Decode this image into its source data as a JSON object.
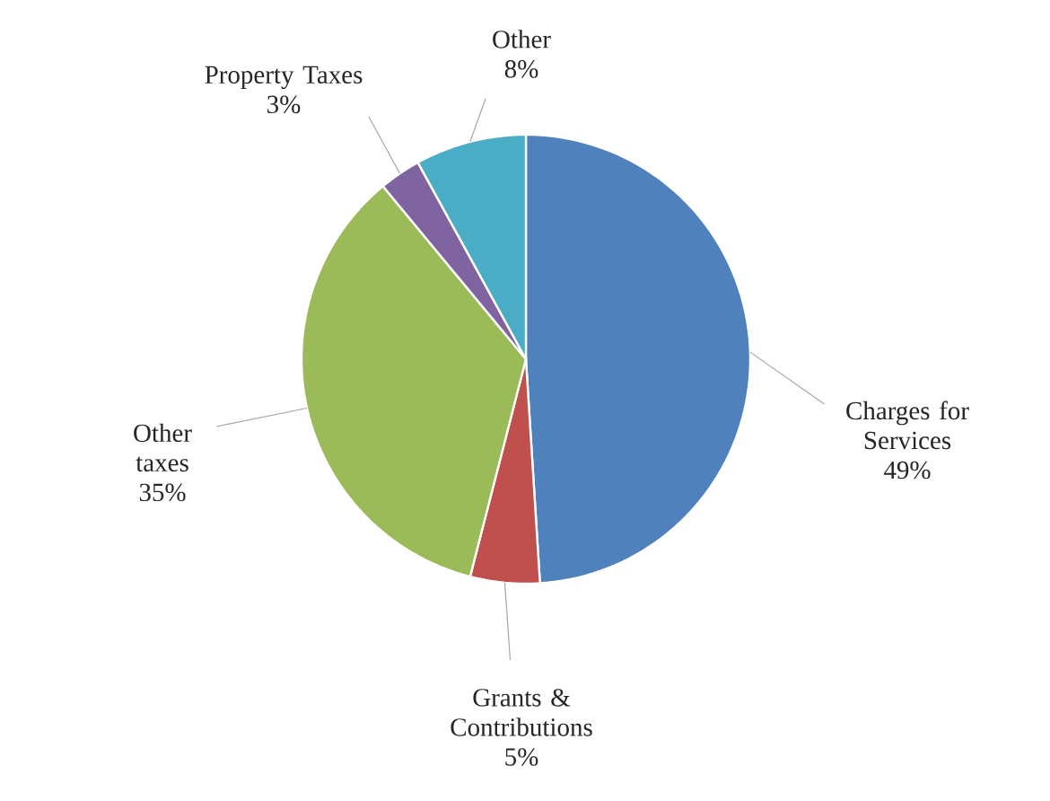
{
  "chart_data": {
    "type": "pie",
    "categories": [
      "Charges for Services",
      "Grants & Contributions",
      "Other taxes",
      "Property Taxes",
      "Other"
    ],
    "values": [
      49,
      5,
      35,
      3,
      8
    ],
    "value_labels": [
      "49%",
      "5%",
      "35%",
      "3%",
      "8%"
    ],
    "colors": [
      "#4f81bd",
      "#c0504d",
      "#9bbb59",
      "#8064a2",
      "#4bacc6"
    ]
  }
}
